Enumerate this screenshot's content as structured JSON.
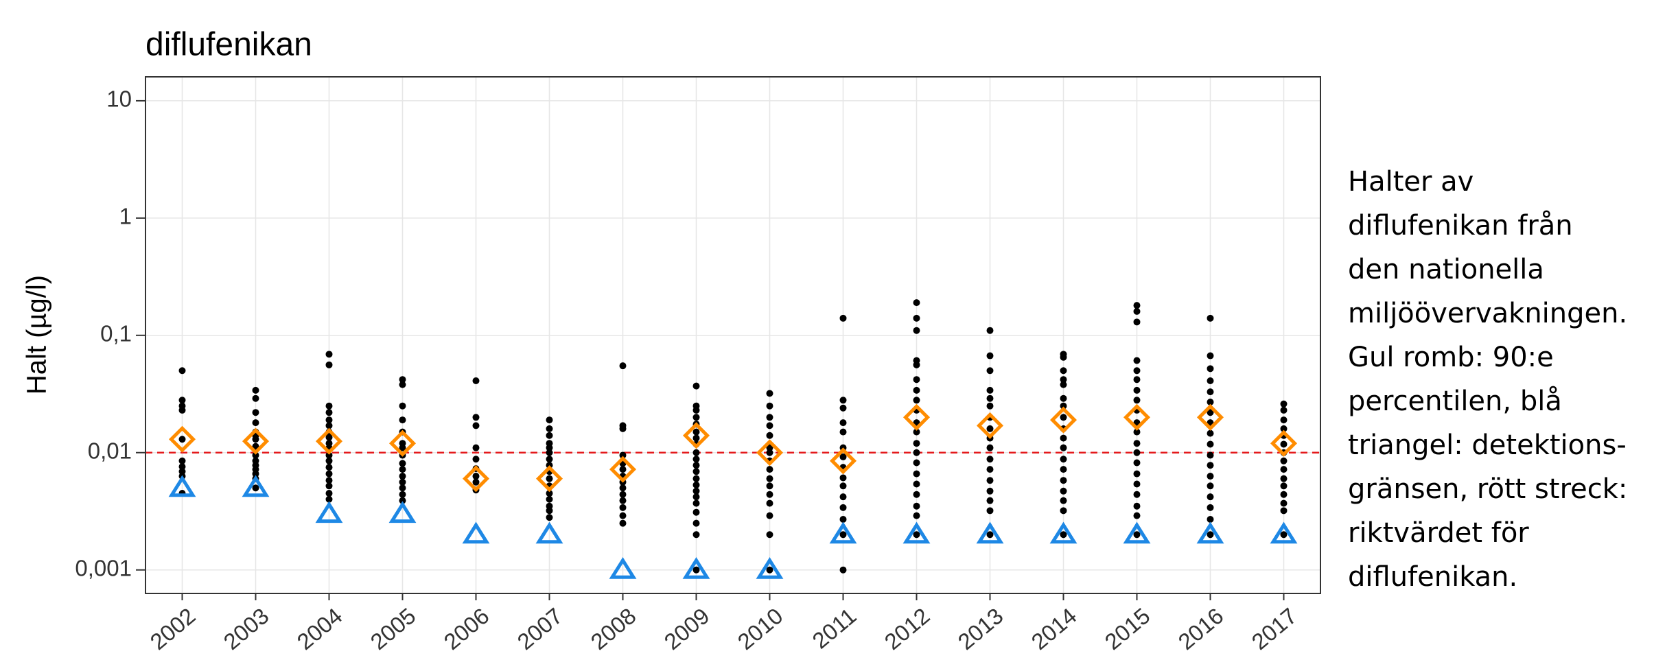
{
  "chart_data": {
    "type": "strip",
    "title": "diflufenikan",
    "y_label": "Halt (µg/l)",
    "categories": [
      "2002",
      "2003",
      "2004",
      "2005",
      "2006",
      "2007",
      "2008",
      "2009",
      "2010",
      "2011",
      "2012",
      "2013",
      "2014",
      "2015",
      "2016",
      "2017"
    ],
    "samples": [
      [
        0.05,
        0.028,
        0.025,
        0.023,
        0.013,
        0.0085,
        0.0076,
        0.0069,
        0.0063,
        0.0045
      ],
      [
        0.034,
        0.029,
        0.022,
        0.018,
        0.015,
        0.014,
        0.013,
        0.0113,
        0.0095,
        0.0085,
        0.0078,
        0.0072,
        0.0066,
        0.006,
        0.005
      ],
      [
        0.069,
        0.056,
        0.025,
        0.022,
        0.019,
        0.017,
        0.015,
        0.0135,
        0.012,
        0.011,
        0.0095,
        0.0085,
        0.0075,
        0.0066,
        0.0058,
        0.0052,
        0.0045,
        0.004
      ],
      [
        0.042,
        0.038,
        0.025,
        0.019,
        0.015,
        0.012,
        0.011,
        0.0095,
        0.0081,
        0.0072,
        0.0063,
        0.0056,
        0.005,
        0.0044,
        0.0039
      ],
      [
        0.041,
        0.02,
        0.017,
        0.011,
        0.0088,
        0.0073,
        0.0063,
        0.0056,
        0.0048
      ],
      [
        0.019,
        0.016,
        0.014,
        0.012,
        0.011,
        0.01,
        0.0088,
        0.0078,
        0.0069,
        0.006,
        0.0052,
        0.0045,
        0.004,
        0.0035,
        0.0032,
        0.0028
      ],
      [
        0.055,
        0.017,
        0.016,
        0.0095,
        0.0081,
        0.0072,
        0.0063,
        0.0056,
        0.005,
        0.0044,
        0.0039,
        0.0034,
        0.0029,
        0.0025
      ],
      [
        0.037,
        0.025,
        0.023,
        0.02,
        0.0175,
        0.015,
        0.0133,
        0.0118,
        0.01,
        0.0088,
        0.0078,
        0.0069,
        0.006,
        0.0053,
        0.0047,
        0.0042,
        0.0037,
        0.0031,
        0.0025,
        0.002,
        0.001
      ],
      [
        0.032,
        0.025,
        0.02,
        0.017,
        0.014,
        0.011,
        0.01,
        0.0085,
        0.0072,
        0.006,
        0.0052,
        0.0044,
        0.0037,
        0.0029,
        0.002,
        0.001
      ],
      [
        0.14,
        0.028,
        0.024,
        0.018,
        0.015,
        0.011,
        0.0092,
        0.0075,
        0.0061,
        0.0052,
        0.0042,
        0.0034,
        0.0027,
        0.002,
        0.001
      ],
      [
        0.19,
        0.14,
        0.11,
        0.061,
        0.056,
        0.042,
        0.034,
        0.028,
        0.023,
        0.018,
        0.015,
        0.012,
        0.01,
        0.0082,
        0.0066,
        0.0054,
        0.0044,
        0.0035,
        0.0029,
        0.002
      ],
      [
        0.11,
        0.067,
        0.05,
        0.034,
        0.029,
        0.025,
        0.02,
        0.016,
        0.0133,
        0.011,
        0.0088,
        0.0072,
        0.0058,
        0.0047,
        0.0039,
        0.0032,
        0.002
      ],
      [
        0.069,
        0.065,
        0.05,
        0.042,
        0.038,
        0.029,
        0.025,
        0.02,
        0.016,
        0.0133,
        0.011,
        0.0088,
        0.0072,
        0.0058,
        0.0047,
        0.0039,
        0.0032,
        0.002
      ],
      [
        0.18,
        0.16,
        0.13,
        0.061,
        0.05,
        0.042,
        0.034,
        0.028,
        0.023,
        0.018,
        0.015,
        0.012,
        0.01,
        0.0082,
        0.0066,
        0.0054,
        0.0044,
        0.0035,
        0.0029,
        0.002
      ],
      [
        0.14,
        0.067,
        0.052,
        0.041,
        0.033,
        0.027,
        0.022,
        0.018,
        0.0146,
        0.0118,
        0.0095,
        0.0078,
        0.0063,
        0.0052,
        0.0042,
        0.0034,
        0.0027,
        0.002
      ],
      [
        0.026,
        0.023,
        0.019,
        0.016,
        0.014,
        0.0118,
        0.01,
        0.0085,
        0.0072,
        0.006,
        0.0052,
        0.0044,
        0.0037,
        0.0032,
        0.002
      ]
    ],
    "p90": [
      0.013,
      0.0125,
      0.0125,
      0.012,
      0.006,
      0.006,
      0.0072,
      0.014,
      0.01,
      0.0085,
      0.02,
      0.017,
      0.019,
      0.02,
      0.02,
      0.012
    ],
    "detection_limit": [
      0.005,
      0.005,
      0.003,
      0.003,
      0.002,
      0.002,
      0.001,
      0.001,
      0.001,
      0.002,
      0.002,
      0.002,
      0.002,
      0.002,
      0.002,
      0.002
    ],
    "guideline": 0.01,
    "colors": {
      "samples": "#000000",
      "p90": "#ff8c00",
      "detection_limit": "#1e88e5",
      "guideline": "#e41a1c"
    },
    "log_scale": true,
    "grid": true,
    "ylim": [
      0.00063,
      16
    ],
    "yticks": [
      10,
      1,
      {
        "value": 0.1,
        "label": "0,1"
      },
      {
        "value": 0.01,
        "label": "0,01"
      },
      {
        "value": 0.001,
        "label": "0,001"
      }
    ]
  },
  "caption": [
    "Halter av",
    "diflufenikan från",
    "den nationella",
    "miljöövervakningen.",
    "Gul romb: 90:e",
    "percentilen, blå",
    "triangel: detektions-",
    "gränsen, rött streck:",
    "riktvärdet för",
    "diflufenikan."
  ]
}
